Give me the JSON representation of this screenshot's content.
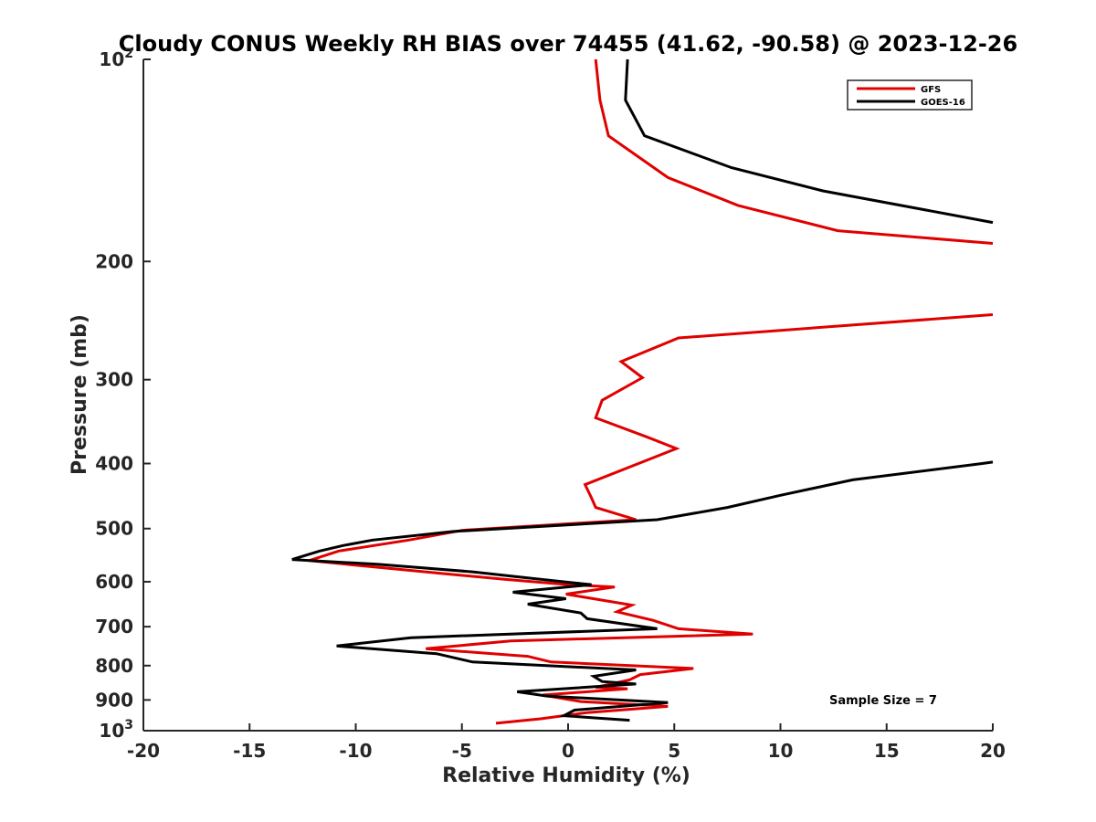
{
  "chart_data": {
    "type": "line",
    "title": "Cloudy CONUS Weekly RH BIAS over 74455 (41.62, -90.58) @ 2023-12-26",
    "xlabel": "Relative Humidity (%)",
    "ylabel": "Pressure (mb)",
    "xlim": [
      -20,
      20
    ],
    "ylim": [
      100,
      1000
    ],
    "y_scale": "log",
    "y_reversed": true,
    "grid": false,
    "legend_position": "top-right",
    "x_ticks": [
      "-20",
      "-15",
      "-10",
      "-5",
      "0",
      "5",
      "10",
      "15",
      "20"
    ],
    "y_ticks": [
      {
        "value": 100,
        "base": "10",
        "exp": "2"
      },
      {
        "value": 200,
        "label": "200"
      },
      {
        "value": 300,
        "label": "300"
      },
      {
        "value": 400,
        "label": "400"
      },
      {
        "value": 500,
        "label": "500"
      },
      {
        "value": 600,
        "label": "600"
      },
      {
        "value": 700,
        "label": "700"
      },
      {
        "value": 800,
        "label": "800"
      },
      {
        "value": 900,
        "label": "900"
      },
      {
        "value": 1000,
        "base": "10",
        "exp": "3"
      }
    ],
    "annotation": "Sample Size = 7",
    "series": [
      {
        "name": "GFS",
        "color": "#e00000",
        "segments": [
          [
            [
              1.3,
              100
            ],
            [
              1.5,
              115
            ],
            [
              1.9,
              130
            ],
            [
              4.7,
              150
            ],
            [
              8,
              165
            ],
            [
              12.7,
              180
            ],
            [
              20,
              188
            ]
          ],
          [
            [
              20,
              240
            ],
            [
              5.2,
              260
            ],
            [
              2.5,
              282
            ],
            [
              3.5,
              298
            ],
            [
              1.6,
              322
            ],
            [
              1.3,
              342
            ],
            [
              3.7,
              365
            ],
            [
              5.1,
              380
            ],
            [
              0.8,
              430
            ],
            [
              1.1,
              450
            ],
            [
              1.3,
              465
            ],
            [
              3.2,
              485
            ],
            [
              -0.5,
              493
            ],
            [
              -5,
              503
            ],
            [
              -7.5,
              520
            ],
            [
              -10.8,
              540
            ],
            [
              -12.2,
              558
            ],
            [
              -6,
              583
            ],
            [
              -3,
              595
            ],
            [
              0,
              606
            ],
            [
              2.2,
              611
            ],
            [
              -0.1,
              626
            ],
            [
              3,
              650
            ],
            [
              2.3,
              665
            ],
            [
              4,
              685
            ],
            [
              5.2,
              705
            ],
            [
              8.7,
              718
            ],
            [
              -2.7,
              735
            ],
            [
              -6.7,
              755
            ],
            [
              -1.9,
              775
            ],
            [
              -0.8,
              790
            ],
            [
              5.9,
              808
            ],
            [
              3.4,
              825
            ],
            [
              2.9,
              840
            ],
            [
              1.3,
              862
            ],
            [
              2.8,
              866
            ],
            [
              -1.2,
              885
            ],
            [
              0.6,
              905
            ],
            [
              4.7,
              920
            ],
            [
              0.9,
              940
            ],
            [
              -1.3,
              960
            ],
            [
              -3.4,
              975
            ]
          ]
        ]
      },
      {
        "name": "GOES-16",
        "color": "#000000",
        "segments": [
          [
            [
              2.8,
              100
            ],
            [
              2.7,
              115
            ],
            [
              3.6,
              130
            ],
            [
              7.7,
              145
            ],
            [
              12,
              157
            ],
            [
              20,
              175
            ]
          ],
          [
            [
              20,
              398
            ],
            [
              19.5,
              400
            ],
            [
              13.4,
              423
            ],
            [
              10,
              446
            ],
            [
              7.5,
              465
            ],
            [
              4.2,
              485
            ],
            [
              -5.4,
              505
            ],
            [
              -9.2,
              520
            ],
            [
              -10.6,
              530
            ],
            [
              -11.7,
              540
            ],
            [
              -13,
              556
            ],
            [
              -9,
              565
            ],
            [
              -4.5,
              580
            ],
            [
              -1.9,
              592
            ],
            [
              0.2,
              602
            ],
            [
              1.1,
              606
            ],
            [
              -2.6,
              622
            ],
            [
              -0.1,
              636
            ],
            [
              -1.9,
              648
            ],
            [
              0.6,
              668
            ],
            [
              0.9,
              681
            ],
            [
              4.2,
              705
            ],
            [
              -7.4,
              727
            ],
            [
              -10.9,
              748
            ],
            [
              -6.2,
              768
            ],
            [
              -4.5,
              790
            ],
            [
              3.2,
              812
            ],
            [
              1.2,
              830
            ],
            [
              1.6,
              845
            ],
            [
              3.2,
              852
            ],
            [
              -2.4,
              875
            ],
            [
              -1,
              888
            ],
            [
              4.7,
              908
            ],
            [
              0.3,
              932
            ],
            [
              -0.2,
              950
            ],
            [
              2.9,
              965
            ]
          ]
        ]
      }
    ]
  }
}
